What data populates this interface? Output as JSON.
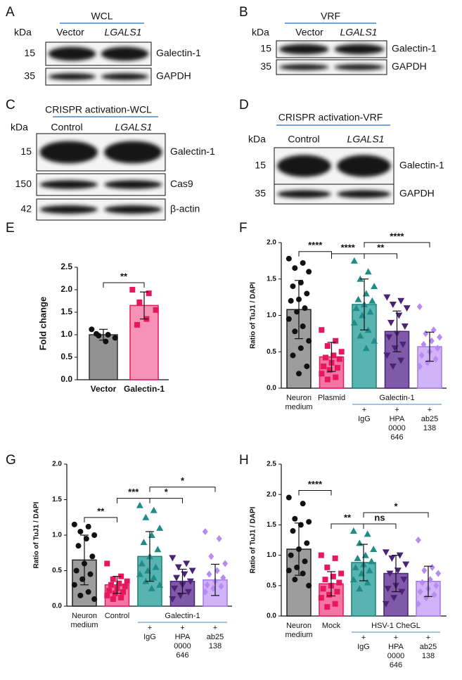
{
  "blots": [
    {
      "panel": "A",
      "header": "WCL",
      "kda": "kDa",
      "lanes": [
        "Vector",
        "LGALS1"
      ],
      "rows": [
        {
          "marker": 15,
          "label": "Galectin-1"
        },
        {
          "marker": 35,
          "label": "GAPDH"
        }
      ]
    },
    {
      "panel": "B",
      "header": "VRF",
      "kda": "kDa",
      "lanes": [
        "Vector",
        "LGALS1"
      ],
      "rows": [
        {
          "marker": 15,
          "label": "Galectin-1"
        },
        {
          "marker": 35,
          "label": "GAPDH"
        }
      ]
    },
    {
      "panel": "C",
      "header": "CRISPR activation-WCL",
      "kda": "kDa",
      "lanes": [
        "Control",
        "LGALS1"
      ],
      "rows": [
        {
          "marker": 15,
          "label": "Galectin-1"
        },
        {
          "marker": 150,
          "label": "Cas9"
        },
        {
          "marker": 42,
          "label": "β-actin"
        }
      ]
    },
    {
      "panel": "D",
      "header": "CRISPR activation-VRF",
      "kda": "kDa",
      "lanes": [
        "Control",
        "LGALS1"
      ],
      "rows": [
        {
          "marker": 15,
          "label": "Galectin-1"
        },
        {
          "marker": 35,
          "label": "GAPDH"
        }
      ]
    }
  ],
  "chart_data": [
    {
      "type": "bar",
      "panel": "E",
      "ylabel": "Fold change",
      "categories": [
        [
          "Vector"
        ],
        [
          "Galectin-1"
        ]
      ],
      "values": [
        1.0,
        1.65
      ],
      "errors": [
        0.12,
        0.3
      ],
      "points": [
        [
          1.12,
          1.0,
          0.98,
          0.93,
          0.85,
          1.02
        ],
        [
          2.0,
          1.92,
          1.72,
          1.55,
          1.35,
          1.22
        ]
      ],
      "colors": [
        "#7f7f7f",
        "#f47fa8"
      ],
      "edge_colors": [
        "#333333",
        "#e8175d"
      ],
      "point_colors": [
        "#111111",
        "#e8175d"
      ],
      "markers": [
        "circle",
        "square"
      ],
      "ylim": [
        0,
        2.5
      ],
      "yticks": [
        {
          "value": 0,
          "label": "0.0"
        },
        0.5,
        {
          "value": 1,
          "label": "1.0"
        },
        1.5,
        {
          "value": 2,
          "label": "2.0"
        },
        2.5
      ],
      "annotations": [
        {
          "text": "**",
          "between": [
            0,
            1
          ]
        }
      ]
    },
    {
      "type": "bar",
      "panel": "F",
      "ylabel": "Ratio of TuJ1 / DAPI",
      "categories": [
        [
          "Neuron",
          "medium"
        ],
        [
          "Plasmid"
        ],
        [
          "+",
          "IgG"
        ],
        [
          "+",
          "HPA",
          "0000",
          "646"
        ],
        [
          "+",
          "ab25",
          "138"
        ]
      ],
      "group_label": "Galectin-1",
      "values": [
        1.08,
        0.43,
        1.15,
        0.78,
        0.57
      ],
      "errors": [
        0.4,
        0.2,
        0.35,
        0.28,
        0.2
      ],
      "points": [
        [
          1.78,
          1.72,
          1.65,
          1.6,
          1.45,
          1.4,
          1.3,
          1.22,
          1.2,
          1.1,
          1.05,
          0.95,
          0.85,
          0.78,
          0.65,
          0.55,
          0.45,
          0.3,
          0.2
        ],
        [
          0.8,
          0.65,
          0.58,
          0.5,
          0.45,
          0.42,
          0.4,
          0.35,
          0.3,
          0.28,
          0.25,
          0.2,
          0.15,
          0.12
        ],
        [
          1.75,
          1.6,
          1.5,
          1.4,
          1.3,
          1.22,
          1.2,
          1.15,
          1.1,
          1.05,
          1.0,
          0.9,
          0.8,
          0.72,
          0.65,
          0.55
        ],
        [
          1.25,
          1.2,
          1.15,
          1.1,
          1.0,
          0.9,
          0.85,
          0.75,
          0.7,
          0.6,
          0.55,
          0.45,
          0.38,
          0.3
        ],
        [
          1.12,
          0.8,
          0.75,
          0.7,
          0.65,
          0.6,
          0.55,
          0.5,
          0.45,
          0.4,
          0.35,
          0.3
        ]
      ],
      "colors": [
        "#8c8c8c",
        "#f25c94",
        "#3aa7a3",
        "#6a3d9a",
        "#c9a6f7"
      ],
      "edge_colors": [
        "#222222",
        "#e8175d",
        "#1f7f7c",
        "#4a2377",
        "#a57ae8"
      ],
      "point_colors": [
        "#111111",
        "#e8175d",
        "#1f8c88",
        "#4a2377",
        "#b98af0"
      ],
      "markers": [
        "circle",
        "square",
        "triangle",
        "triangle-down",
        "diamond"
      ],
      "ylim": [
        0,
        2.0
      ],
      "yticks": [
        {
          "value": 0,
          "label": "0.0"
        },
        0.5,
        {
          "value": 1,
          "label": "1.0"
        },
        1.5,
        {
          "value": 2,
          "label": "2.0"
        }
      ],
      "annotations": [
        {
          "text": "****",
          "between": [
            0,
            1
          ]
        },
        {
          "text": "****",
          "between": [
            1,
            2
          ]
        },
        {
          "text": "**",
          "between": [
            2,
            3
          ]
        },
        {
          "text": "****",
          "between": [
            2,
            4
          ]
        }
      ]
    },
    {
      "type": "bar",
      "panel": "G",
      "ylabel": "Ratio of TuJ1 / DAPI",
      "categories": [
        [
          "Neuron",
          "medium"
        ],
        [
          "Control"
        ],
        [
          "+",
          "IgG"
        ],
        [
          "+",
          "HPA",
          "0000",
          "646"
        ],
        [
          "+",
          "ab25",
          "138"
        ]
      ],
      "group_label": "Galectin-1",
      "values": [
        0.65,
        0.3,
        0.7,
        0.35,
        0.37
      ],
      "errors": [
        0.35,
        0.12,
        0.35,
        0.17,
        0.22
      ],
      "points": [
        [
          1.15,
          1.12,
          1.05,
          1.0,
          0.95,
          0.85,
          0.7,
          0.6,
          0.5,
          0.45,
          0.38,
          0.3,
          0.2,
          0.15,
          0.1
        ],
        [
          0.6,
          0.42,
          0.38,
          0.35,
          0.32,
          0.3,
          0.28,
          0.25,
          0.22,
          0.2,
          0.18,
          0.15,
          0.12,
          0.1
        ],
        [
          1.42,
          1.35,
          1.25,
          1.1,
          1.0,
          0.9,
          0.8,
          0.7,
          0.6,
          0.55,
          0.5,
          0.45,
          0.4,
          0.35,
          0.3,
          0.25
        ],
        [
          0.68,
          0.6,
          0.55,
          0.5,
          0.45,
          0.4,
          0.35,
          0.3,
          0.25,
          0.2,
          0.15,
          0.1
        ],
        [
          1.05,
          0.95,
          0.7,
          0.6,
          0.5,
          0.45,
          0.4,
          0.35,
          0.3,
          0.28,
          0.25,
          0.2
        ]
      ],
      "colors": [
        "#8c8c8c",
        "#f25c94",
        "#3aa7a3",
        "#6a3d9a",
        "#c9a6f7"
      ],
      "edge_colors": [
        "#222222",
        "#e8175d",
        "#1f7f7c",
        "#4a2377",
        "#a57ae8"
      ],
      "point_colors": [
        "#111111",
        "#e8175d",
        "#1f8c88",
        "#4a2377",
        "#b98af0"
      ],
      "markers": [
        "circle",
        "square",
        "triangle",
        "triangle-down",
        "diamond"
      ],
      "ylim": [
        0,
        2.0
      ],
      "yticks": [
        {
          "value": 0,
          "label": "0.0"
        },
        0.5,
        {
          "value": 1,
          "label": "1.0"
        },
        1.5,
        {
          "value": 2,
          "label": "2.0"
        }
      ],
      "annotations": [
        {
          "text": "**",
          "between": [
            0,
            1
          ]
        },
        {
          "text": "***",
          "between": [
            1,
            2
          ]
        },
        {
          "text": "*",
          "between": [
            2,
            3
          ]
        },
        {
          "text": "*",
          "between": [
            2,
            4
          ]
        }
      ]
    },
    {
      "type": "bar",
      "panel": "H",
      "ylabel": "Ratio of TuJ1 / DAPI",
      "categories": [
        [
          "Neuron",
          "medium"
        ],
        [
          "Mock"
        ],
        [
          "+",
          "IgG"
        ],
        [
          "+",
          "HPA",
          "0000",
          "646"
        ],
        [
          "+",
          "ab25",
          "138"
        ]
      ],
      "group_label": "HSV-1 CheGL",
      "values": [
        1.1,
        0.53,
        0.88,
        0.7,
        0.57
      ],
      "errors": [
        0.43,
        0.2,
        0.3,
        0.3,
        0.25
      ],
      "points": [
        [
          1.95,
          1.85,
          1.6,
          1.55,
          1.5,
          1.4,
          1.2,
          1.1,
          1.0,
          0.9,
          0.8,
          0.75,
          0.7,
          0.6,
          0.5
        ],
        [
          1.0,
          0.95,
          0.8,
          0.7,
          0.65,
          0.6,
          0.55,
          0.5,
          0.45,
          0.4,
          0.35,
          0.3,
          0.2,
          0.15
        ],
        [
          1.4,
          1.35,
          1.2,
          1.1,
          1.0,
          0.95,
          0.9,
          0.85,
          0.8,
          0.75,
          0.7,
          0.6,
          0.55,
          0.45
        ],
        [
          1.05,
          1.0,
          0.95,
          0.85,
          0.75,
          0.7,
          0.6,
          0.5,
          0.45,
          0.4,
          0.3,
          0.2
        ],
        [
          1.25,
          0.8,
          0.75,
          0.7,
          0.6,
          0.55,
          0.5,
          0.45,
          0.4,
          0.35,
          0.3,
          0.2
        ]
      ],
      "colors": [
        "#8c8c8c",
        "#f25c94",
        "#3aa7a3",
        "#6a3d9a",
        "#c9a6f7"
      ],
      "edge_colors": [
        "#222222",
        "#e8175d",
        "#1f7f7c",
        "#4a2377",
        "#a57ae8"
      ],
      "point_colors": [
        "#111111",
        "#e8175d",
        "#1f8c88",
        "#4a2377",
        "#b98af0"
      ],
      "markers": [
        "circle",
        "square",
        "triangle",
        "triangle-down",
        "diamond"
      ],
      "ylim": [
        0,
        2.5
      ],
      "yticks": [
        {
          "value": 0,
          "label": "0.0"
        },
        0.5,
        {
          "value": 1,
          "label": "1.0"
        },
        1.5,
        {
          "value": 2,
          "label": "2.0"
        },
        2.5
      ],
      "annotations": [
        {
          "text": "****",
          "between": [
            0,
            1
          ]
        },
        {
          "text": "**",
          "between": [
            1,
            2
          ]
        },
        {
          "text": "ns",
          "between": [
            2,
            3
          ]
        },
        {
          "text": "*",
          "between": [
            2,
            4
          ]
        }
      ]
    }
  ]
}
